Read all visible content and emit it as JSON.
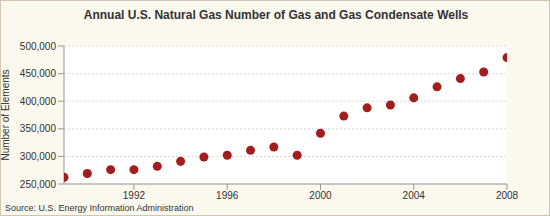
{
  "chart_data": {
    "type": "scatter",
    "title": "Annual U.S. Natural Gas Number of Gas and Gas Condensate Wells",
    "y_label": "Number of Elements",
    "source": "Source: U.S. Energy Information Administration",
    "x": [
      1989,
      1990,
      1991,
      1992,
      1993,
      1994,
      1995,
      1996,
      1997,
      1998,
      1999,
      2000,
      2001,
      2002,
      2003,
      2004,
      2005,
      2006,
      2007,
      2008
    ],
    "values": [
      262000,
      269000,
      276000,
      276000,
      282000,
      291000,
      299000,
      302000,
      311000,
      317000,
      302000,
      342000,
      373000,
      388000,
      393000,
      406000,
      426000,
      441000,
      453000,
      479000
    ],
    "color": "#a31d1d",
    "xlim": [
      1989,
      2008
    ],
    "xticks": [
      1992,
      1996,
      2000,
      2004,
      2008
    ],
    "ylim": [
      250000,
      500000
    ],
    "yticks": [
      {
        "value": 250000,
        "label": "250,000"
      },
      {
        "value": 300000,
        "label": "300,000"
      },
      {
        "value": 350000,
        "label": "350,000"
      },
      {
        "value": 400000,
        "label": "400,000"
      },
      {
        "value": 450000,
        "label": "450,000"
      },
      {
        "value": 500000,
        "label": "500,000"
      }
    ],
    "grid": true
  }
}
